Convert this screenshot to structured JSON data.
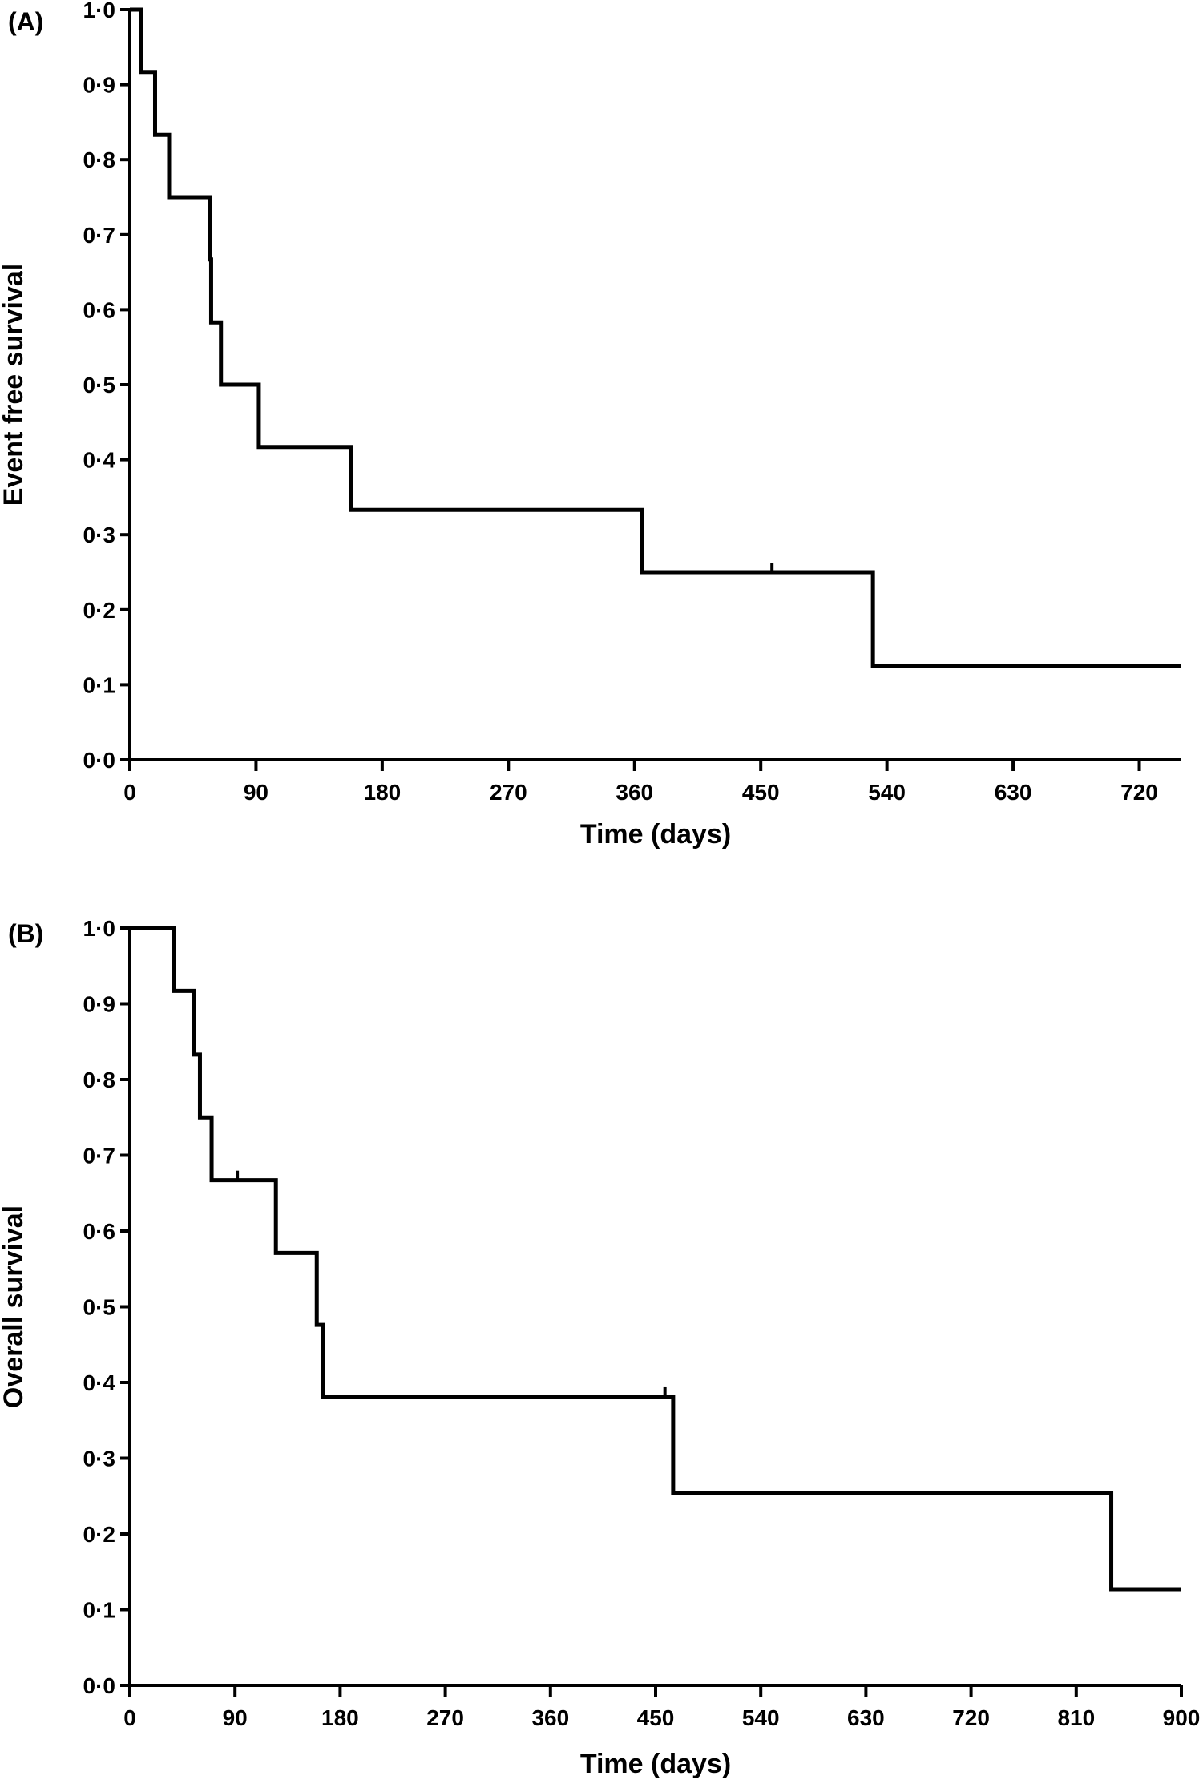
{
  "figure": {
    "panels": [
      "A",
      "B"
    ]
  },
  "chart_data": [
    {
      "type": "line",
      "subtype": "kaplan-meier",
      "panel_label": "(A)",
      "xlabel": "Time (days)",
      "ylabel": "Event free survival",
      "xlim": [
        0,
        750
      ],
      "ylim": [
        0,
        1
      ],
      "xticks": [
        0,
        90,
        180,
        270,
        360,
        450,
        540,
        630,
        720
      ],
      "yticks": [
        "0·0",
        "0·1",
        "0·2",
        "0·3",
        "0·4",
        "0·5",
        "0·6",
        "0·7",
        "0·8",
        "0·9",
        "1·0"
      ],
      "grid": false,
      "series": [
        {
          "step_points": [
            {
              "x": 0,
              "y": 1.0
            },
            {
              "x": 8,
              "y": 0.917
            },
            {
              "x": 18,
              "y": 0.833
            },
            {
              "x": 28,
              "y": 0.75
            },
            {
              "x": 57,
              "y": 0.667
            },
            {
              "x": 58,
              "y": 0.583
            },
            {
              "x": 65,
              "y": 0.5
            },
            {
              "x": 92,
              "y": 0.417
            },
            {
              "x": 158,
              "y": 0.333
            },
            {
              "x": 365,
              "y": 0.25
            },
            {
              "x": 530,
              "y": 0.125
            },
            {
              "x": 750,
              "y": 0.125
            }
          ],
          "censored": [
            {
              "x": 458,
              "y": 0.25
            }
          ]
        }
      ]
    },
    {
      "type": "line",
      "subtype": "kaplan-meier",
      "panel_label": "(B)",
      "xlabel": "Time (days)",
      "ylabel": "Overall survival",
      "xlim": [
        0,
        900
      ],
      "ylim": [
        0,
        1
      ],
      "xticks": [
        0,
        90,
        180,
        270,
        360,
        450,
        540,
        630,
        720,
        810,
        900
      ],
      "yticks": [
        "0·0",
        "0·1",
        "0·2",
        "0·3",
        "0·4",
        "0·5",
        "0·6",
        "0·7",
        "0·8",
        "0·9",
        "1·0"
      ],
      "grid": false,
      "series": [
        {
          "step_points": [
            {
              "x": 0,
              "y": 1.0
            },
            {
              "x": 38,
              "y": 0.917
            },
            {
              "x": 55,
              "y": 0.833
            },
            {
              "x": 60,
              "y": 0.75
            },
            {
              "x": 70,
              "y": 0.667
            },
            {
              "x": 125,
              "y": 0.571
            },
            {
              "x": 160,
              "y": 0.476
            },
            {
              "x": 165,
              "y": 0.381
            },
            {
              "x": 465,
              "y": 0.254
            },
            {
              "x": 840,
              "y": 0.127
            },
            {
              "x": 900,
              "y": 0.127
            }
          ],
          "censored": [
            {
              "x": 92,
              "y": 0.667
            },
            {
              "x": 458,
              "y": 0.381
            }
          ]
        }
      ]
    }
  ]
}
